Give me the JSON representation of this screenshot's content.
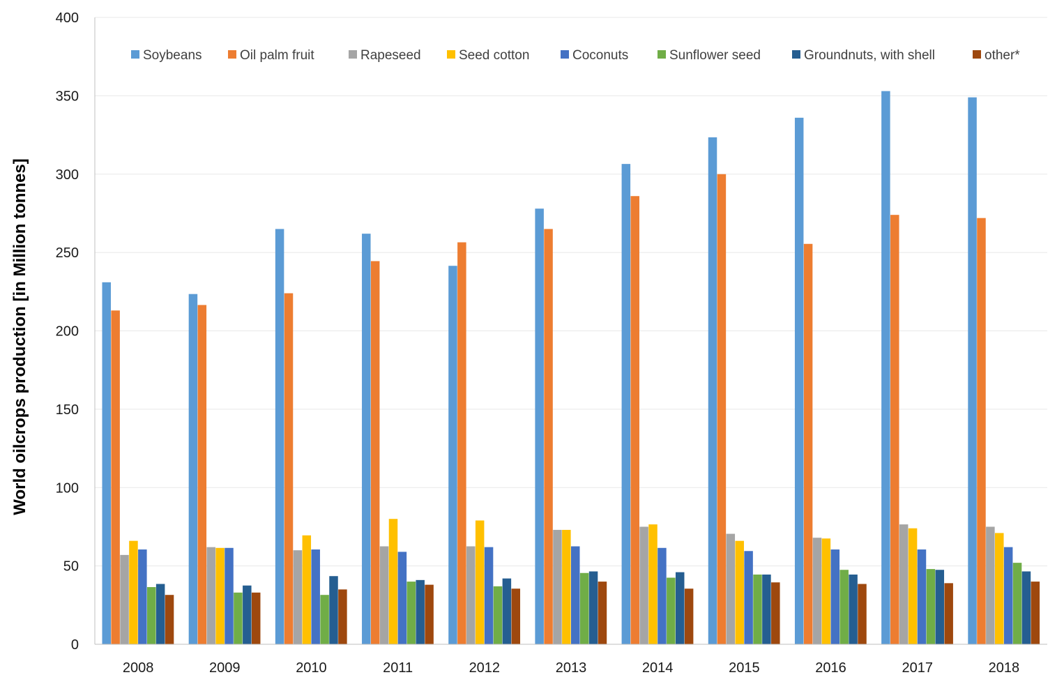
{
  "chart_data": {
    "type": "bar",
    "title": "",
    "xlabel": "",
    "ylabel": "World oilcrops production [in Million tonnes]",
    "ylim": [
      0,
      400
    ],
    "yticks": [
      0,
      50,
      100,
      150,
      200,
      250,
      300,
      350,
      400
    ],
    "grid": true,
    "legend_position": "top",
    "categories": [
      "2008",
      "2009",
      "2010",
      "2011",
      "2012",
      "2013",
      "2014",
      "2015",
      "2016",
      "2017",
      "2018"
    ],
    "series": [
      {
        "name": "Soybeans",
        "color": "#5b9bd5",
        "values": [
          231,
          223.5,
          265,
          262,
          241.5,
          278,
          306.5,
          323.5,
          336,
          353,
          349
        ]
      },
      {
        "name": "Oil palm fruit",
        "color": "#ed7d31",
        "values": [
          213,
          216.5,
          224,
          244.5,
          256.5,
          265,
          286,
          300,
          255.5,
          274,
          272
        ]
      },
      {
        "name": "Rapeseed",
        "color": "#a5a5a5",
        "values": [
          57,
          62,
          60,
          62.5,
          62.5,
          73,
          75,
          70.5,
          68,
          76.5,
          75
        ]
      },
      {
        "name": "Seed cotton",
        "color": "#ffc000",
        "values": [
          66,
          61.5,
          69.5,
          80,
          79,
          73,
          76.5,
          66,
          67.5,
          74,
          71
        ]
      },
      {
        "name": "Coconuts",
        "color": "#4472c4",
        "values": [
          60.5,
          61.5,
          60.5,
          59,
          62,
          62.5,
          61.5,
          59.5,
          60.5,
          60.5,
          62
        ]
      },
      {
        "name": "Sunflower seed",
        "color": "#70ad47",
        "values": [
          36.5,
          33,
          31.5,
          40,
          37,
          45.5,
          42.5,
          44.5,
          47.5,
          48,
          52
        ]
      },
      {
        "name": "Groundnuts, with shell",
        "color": "#255e91",
        "values": [
          38.5,
          37.5,
          43.5,
          41,
          42,
          46.5,
          46,
          44.5,
          44.5,
          47.5,
          46.5
        ]
      },
      {
        "name": "other*",
        "color": "#9e480e",
        "values": [
          31.5,
          33,
          35,
          38,
          35.5,
          40,
          35.5,
          39.5,
          38.5,
          39,
          40
        ]
      }
    ]
  },
  "colors": {
    "gridline": "#e8e8e8",
    "axis_line": "#bfbfbf"
  }
}
